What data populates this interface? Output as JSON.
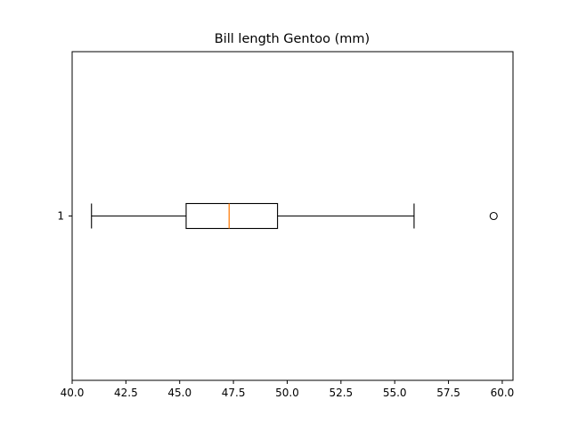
{
  "chart_data": {
    "type": "boxplot",
    "orientation": "horizontal",
    "title": "Bill length Gentoo (mm)",
    "xlabel": "",
    "ylabel": "",
    "xlim": [
      40.0,
      60.5
    ],
    "x_ticks": [
      "40.0",
      "42.5",
      "45.0",
      "47.5",
      "50.0",
      "52.5",
      "55.0",
      "57.5",
      "60.0"
    ],
    "y_ticks": [
      "1"
    ],
    "grid": false,
    "legend": "none",
    "boxes": [
      {
        "category": "1",
        "whisker_low": 40.9,
        "q1": 45.3,
        "median": 47.3,
        "q3": 49.55,
        "whisker_high": 55.9,
        "outliers": [
          59.6
        ]
      }
    ],
    "colors": {
      "box": "#000000",
      "median": "#ff7f0e",
      "whisker": "#000000",
      "outlier": "#000000"
    }
  }
}
